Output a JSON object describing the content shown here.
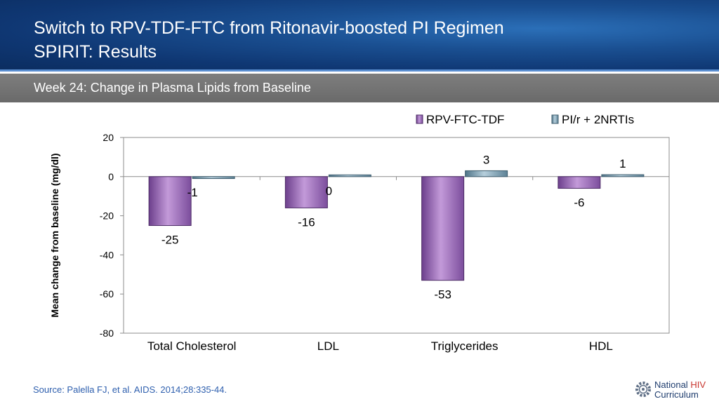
{
  "header": {
    "title_line1": "Switch to RPV-TDF-FTC from Ritonavir-boosted PI Regimen",
    "title_line2": "SPIRIT: Results"
  },
  "subheader": {
    "text": "Week 24: Change in Plasma Lipids from Baseline"
  },
  "chart_data": {
    "type": "bar",
    "categories": [
      "Total Cholesterol",
      "LDL",
      "Triglycerides",
      "HDL"
    ],
    "series": [
      {
        "name": "RPV-FTC-TDF",
        "values": [
          -25,
          -16,
          -53,
          -6
        ],
        "color": "#9b6fbf"
      },
      {
        "name": "PI/r + 2NRTIs",
        "values": [
          -1,
          0,
          3,
          1
        ],
        "color": "#7fa0b4"
      }
    ],
    "data_labels": [
      [
        "-25",
        "-16",
        "-53",
        "-6"
      ],
      [
        "-1",
        "0",
        "3",
        "1"
      ]
    ],
    "ylabel": "Mean change from baseline (mg/dl)",
    "xlabel": "",
    "ylim": [
      -80,
      20
    ],
    "yticks": [
      20,
      0,
      -20,
      -40,
      -60,
      -80
    ],
    "legend_position": "top-right",
    "grid": false
  },
  "footer": {
    "source": "Source: Palella FJ, et al. AIDS. 2014;28:335-44.",
    "logo_line1_a": "National ",
    "logo_line1_b": "HIV",
    "logo_line2": "Curriculum",
    "accent_color": "#c8362f"
  }
}
